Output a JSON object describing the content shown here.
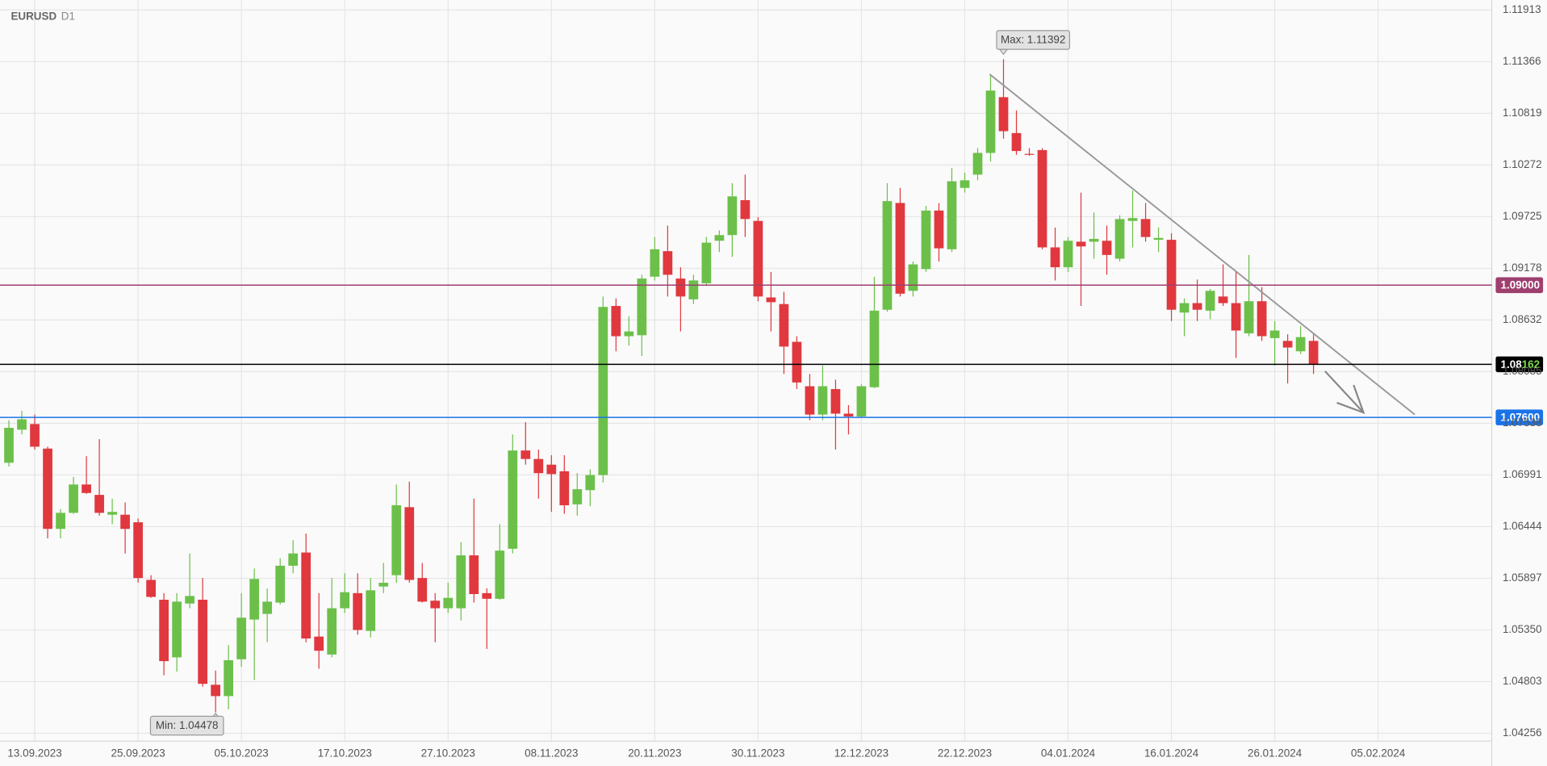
{
  "header": {
    "symbol": "EURUSD",
    "timeframe": "D1"
  },
  "chart_data": {
    "type": "candlestick",
    "up_color": "#6cc04a",
    "down_color": "#e0383e",
    "xlim": [
      -0.69,
      114.8
    ],
    "ylim": [
      1.04256,
      1.11913
    ],
    "yticks": [
      1.11913,
      1.11366,
      1.10819,
      1.10272,
      1.09725,
      1.09178,
      1.08632,
      1.08085,
      1.07538,
      1.06991,
      1.06444,
      1.05897,
      {
        "value": 1.0535,
        "label": "1.05350"
      },
      1.04803,
      1.04256
    ],
    "grid": true,
    "x_labels": [
      {
        "index": 2,
        "label": "13.09.2023"
      },
      {
        "index": 10,
        "label": "25.09.2023"
      },
      {
        "index": 18,
        "label": "05.10.2023"
      },
      {
        "index": 26,
        "label": "17.10.2023"
      },
      {
        "index": 34,
        "label": "27.10.2023"
      },
      {
        "index": 42,
        "label": "08.11.2023"
      },
      {
        "index": 50,
        "label": "20.11.2023"
      },
      {
        "index": 58,
        "label": "30.11.2023"
      },
      {
        "index": 66,
        "label": "12.12.2023"
      },
      {
        "index": 74,
        "label": "22.12.2023"
      },
      {
        "index": 82,
        "label": "04.01.2024"
      },
      {
        "index": 90,
        "label": "16.01.2024"
      },
      {
        "index": 98,
        "label": "26.01.2024"
      },
      {
        "index": 106,
        "label": "05.02.2024"
      }
    ],
    "levels": [
      {
        "value": 1.09,
        "label": "1.09000",
        "color": "#9e3f6e"
      },
      {
        "value": 1.08162,
        "label": "1.08162",
        "color": "#000000"
      },
      {
        "value": 1.076,
        "label": "1.07600",
        "color": "#1a73e8"
      }
    ],
    "max_marker": {
      "label": "Max: 1.11392",
      "value": 1.11392,
      "index": 77
    },
    "min_marker": {
      "label": "Min: 1.04478",
      "value": 1.04478,
      "index": 16
    },
    "candles": [
      {
        "o": 1.0712,
        "h": 1.0757,
        "l": 1.0708,
        "c": 1.0749
      },
      {
        "o": 1.0747,
        "h": 1.0767,
        "l": 1.0742,
        "c": 1.0758
      },
      {
        "o": 1.0753,
        "h": 1.0763,
        "l": 1.0726,
        "c": 1.0729
      },
      {
        "o": 1.0727,
        "h": 1.0729,
        "l": 1.0632,
        "c": 1.0642
      },
      {
        "o": 1.0642,
        "h": 1.0663,
        "l": 1.0632,
        "c": 1.0659
      },
      {
        "o": 1.0659,
        "h": 1.0697,
        "l": 1.0658,
        "c": 1.0689
      },
      {
        "o": 1.0689,
        "h": 1.0719,
        "l": 1.0679,
        "c": 1.068
      },
      {
        "o": 1.0678,
        "h": 1.0737,
        "l": 1.0656,
        "c": 1.0659
      },
      {
        "o": 1.0657,
        "h": 1.0674,
        "l": 1.0647,
        "c": 1.066
      },
      {
        "o": 1.0657,
        "h": 1.067,
        "l": 1.0616,
        "c": 1.0642
      },
      {
        "o": 1.0649,
        "h": 1.0653,
        "l": 1.0585,
        "c": 1.059
      },
      {
        "o": 1.0588,
        "h": 1.0593,
        "l": 1.0569,
        "c": 1.057
      },
      {
        "o": 1.0567,
        "h": 1.0574,
        "l": 1.0487,
        "c": 1.0502
      },
      {
        "o": 1.0506,
        "h": 1.0574,
        "l": 1.0491,
        "c": 1.0565
      },
      {
        "o": 1.0563,
        "h": 1.0616,
        "l": 1.0558,
        "c": 1.0571
      },
      {
        "o": 1.0567,
        "h": 1.059,
        "l": 1.0475,
        "c": 1.0478
      },
      {
        "o": 1.0477,
        "h": 1.0492,
        "l": 1.04478,
        "c": 1.0465
      },
      {
        "o": 1.0465,
        "h": 1.0519,
        "l": 1.0451,
        "c": 1.0503
      },
      {
        "o": 1.0504,
        "h": 1.0574,
        "l": 1.0496,
        "c": 1.0548
      },
      {
        "o": 1.0546,
        "h": 1.06,
        "l": 1.0482,
        "c": 1.0589
      },
      {
        "o": 1.0552,
        "h": 1.0579,
        "l": 1.0522,
        "c": 1.0565
      },
      {
        "o": 1.0564,
        "h": 1.0611,
        "l": 1.0562,
        "c": 1.0603
      },
      {
        "o": 1.0603,
        "h": 1.063,
        "l": 1.0595,
        "c": 1.0616
      },
      {
        "o": 1.0617,
        "h": 1.0637,
        "l": 1.0522,
        "c": 1.0526
      },
      {
        "o": 1.0528,
        "h": 1.0574,
        "l": 1.0494,
        "c": 1.0513
      },
      {
        "o": 1.0509,
        "h": 1.059,
        "l": 1.0506,
        "c": 1.0558
      },
      {
        "o": 1.0558,
        "h": 1.0595,
        "l": 1.0553,
        "c": 1.0575
      },
      {
        "o": 1.0574,
        "h": 1.0595,
        "l": 1.053,
        "c": 1.0535
      },
      {
        "o": 1.0534,
        "h": 1.059,
        "l": 1.0527,
        "c": 1.0577
      },
      {
        "o": 1.0581,
        "h": 1.0606,
        "l": 1.0574,
        "c": 1.0585
      },
      {
        "o": 1.0593,
        "h": 1.0689,
        "l": 1.0585,
        "c": 1.0667
      },
      {
        "o": 1.0665,
        "h": 1.0692,
        "l": 1.0585,
        "c": 1.0588
      },
      {
        "o": 1.059,
        "h": 1.0606,
        "l": 1.0564,
        "c": 1.0565
      },
      {
        "o": 1.0566,
        "h": 1.0574,
        "l": 1.0522,
        "c": 1.0558
      },
      {
        "o": 1.0558,
        "h": 1.0585,
        "l": 1.0553,
        "c": 1.0569
      },
      {
        "o": 1.0558,
        "h": 1.0628,
        "l": 1.0545,
        "c": 1.0614
      },
      {
        "o": 1.0614,
        "h": 1.0674,
        "l": 1.0564,
        "c": 1.0573
      },
      {
        "o": 1.0574,
        "h": 1.0579,
        "l": 1.0515,
        "c": 1.0568
      },
      {
        "o": 1.0568,
        "h": 1.0647,
        "l": 1.0567,
        "c": 1.0619
      },
      {
        "o": 1.0621,
        "h": 1.0742,
        "l": 1.0616,
        "c": 1.0725
      },
      {
        "o": 1.0725,
        "h": 1.0755,
        "l": 1.071,
        "c": 1.0716
      },
      {
        "o": 1.0716,
        "h": 1.0726,
        "l": 1.0674,
        "c": 1.0701
      },
      {
        "o": 1.071,
        "h": 1.072,
        "l": 1.066,
        "c": 1.07
      },
      {
        "o": 1.0703,
        "h": 1.072,
        "l": 1.0658,
        "c": 1.0667
      },
      {
        "o": 1.0668,
        "h": 1.0701,
        "l": 1.0656,
        "c": 1.0684
      },
      {
        "o": 1.0683,
        "h": 1.0705,
        "l": 1.0666,
        "c": 1.0699
      },
      {
        "o": 1.0699,
        "h": 1.0888,
        "l": 1.0691,
        "c": 1.0877
      },
      {
        "o": 1.0878,
        "h": 1.0886,
        "l": 1.083,
        "c": 1.0846
      },
      {
        "o": 1.0846,
        "h": 1.0867,
        "l": 1.0836,
        "c": 1.0851
      },
      {
        "o": 1.0847,
        "h": 1.0911,
        "l": 1.0825,
        "c": 1.0907
      },
      {
        "o": 1.0909,
        "h": 1.0951,
        "l": 1.0905,
        "c": 1.0938
      },
      {
        "o": 1.0936,
        "h": 1.0963,
        "l": 1.0888,
        "c": 1.0911
      },
      {
        "o": 1.0907,
        "h": 1.0919,
        "l": 1.0851,
        "c": 1.0888
      },
      {
        "o": 1.0885,
        "h": 1.0911,
        "l": 1.088,
        "c": 1.0905
      },
      {
        "o": 1.0902,
        "h": 1.0951,
        "l": 1.0899,
        "c": 1.0945
      },
      {
        "o": 1.0947,
        "h": 1.0958,
        "l": 1.0935,
        "c": 1.0953
      },
      {
        "o": 1.0953,
        "h": 1.1008,
        "l": 1.093,
        "c": 1.0994
      },
      {
        "o": 1.099,
        "h": 1.1017,
        "l": 1.0951,
        "c": 1.097
      },
      {
        "o": 1.0968,
        "h": 1.0972,
        "l": 1.0883,
        "c": 1.0888
      },
      {
        "o": 1.0887,
        "h": 1.0914,
        "l": 1.0851,
        "c": 1.0882
      },
      {
        "o": 1.088,
        "h": 1.0893,
        "l": 1.0806,
        "c": 1.0835
      },
      {
        "o": 1.084,
        "h": 1.0846,
        "l": 1.079,
        "c": 1.0797
      },
      {
        "o": 1.0793,
        "h": 1.0806,
        "l": 1.0757,
        "c": 1.0763
      },
      {
        "o": 1.0763,
        "h": 1.0815,
        "l": 1.0757,
        "c": 1.0793
      },
      {
        "o": 1.079,
        "h": 1.08,
        "l": 1.0726,
        "c": 1.0764
      },
      {
        "o": 1.0764,
        "h": 1.0773,
        "l": 1.0742,
        "c": 1.0761
      },
      {
        "o": 1.0761,
        "h": 1.0795,
        "l": 1.076,
        "c": 1.0793
      },
      {
        "o": 1.0792,
        "h": 1.0909,
        "l": 1.0791,
        "c": 1.0873
      },
      {
        "o": 1.0874,
        "h": 1.1008,
        "l": 1.0872,
        "c": 1.0989
      },
      {
        "o": 1.0987,
        "h": 1.1003,
        "l": 1.0888,
        "c": 1.0891
      },
      {
        "o": 1.0894,
        "h": 1.0925,
        "l": 1.0888,
        "c": 1.0922
      },
      {
        "o": 1.0917,
        "h": 1.0984,
        "l": 1.0914,
        "c": 1.0979
      },
      {
        "o": 1.0979,
        "h": 1.0987,
        "l": 1.0925,
        "c": 1.0939
      },
      {
        "o": 1.0938,
        "h": 1.1024,
        "l": 1.0935,
        "c": 1.101
      },
      {
        "o": 1.1003,
        "h": 1.1019,
        "l": 1.0998,
        "c": 1.1011
      },
      {
        "o": 1.1017,
        "h": 1.1045,
        "l": 1.1011,
        "c": 1.104
      },
      {
        "o": 1.104,
        "h": 1.1123,
        "l": 1.1031,
        "c": 1.1106
      },
      {
        "o": 1.1099,
        "h": 1.11392,
        "l": 1.1055,
        "c": 1.1063
      },
      {
        "o": 1.1061,
        "h": 1.1085,
        "l": 1.1038,
        "c": 1.1042
      },
      {
        "o": 1.1039,
        "h": 1.1045,
        "l": 1.1037,
        "c": 1.1038
      },
      {
        "o": 1.1043,
        "h": 1.1045,
        "l": 1.0938,
        "c": 1.094
      },
      {
        "o": 1.094,
        "h": 1.0961,
        "l": 1.0905,
        "c": 1.0919
      },
      {
        "o": 1.0919,
        "h": 1.0951,
        "l": 1.0914,
        "c": 1.0947
      },
      {
        "o": 1.0946,
        "h": 1.0998,
        "l": 1.0878,
        "c": 1.0941
      },
      {
        "o": 1.0946,
        "h": 1.0977,
        "l": 1.0928,
        "c": 1.0949
      },
      {
        "o": 1.0947,
        "h": 1.0963,
        "l": 1.0911,
        "c": 1.0932
      },
      {
        "o": 1.0928,
        "h": 1.0974,
        "l": 1.0925,
        "c": 1.097
      },
      {
        "o": 1.0968,
        "h": 1.1,
        "l": 1.094,
        "c": 1.0971
      },
      {
        "o": 1.097,
        "h": 1.0987,
        "l": 1.0946,
        "c": 1.0951
      },
      {
        "o": 1.0948,
        "h": 1.0961,
        "l": 1.0935,
        "c": 1.095
      },
      {
        "o": 1.0948,
        "h": 1.0955,
        "l": 1.0862,
        "c": 1.0874
      },
      {
        "o": 1.0871,
        "h": 1.0886,
        "l": 1.0846,
        "c": 1.0881
      },
      {
        "o": 1.0881,
        "h": 1.0906,
        "l": 1.0862,
        "c": 1.0874
      },
      {
        "o": 1.0873,
        "h": 1.0896,
        "l": 1.0864,
        "c": 1.0894
      },
      {
        "o": 1.0888,
        "h": 1.0922,
        "l": 1.0878,
        "c": 1.0881
      },
      {
        "o": 1.0881,
        "h": 1.0914,
        "l": 1.0823,
        "c": 1.0852
      },
      {
        "o": 1.0849,
        "h": 1.0932,
        "l": 1.0846,
        "c": 1.0883
      },
      {
        "o": 1.0883,
        "h": 1.0898,
        "l": 1.0841,
        "c": 1.0846
      },
      {
        "o": 1.0844,
        "h": 1.0862,
        "l": 1.0815,
        "c": 1.0852
      },
      {
        "o": 1.0841,
        "h": 1.0848,
        "l": 1.0796,
        "c": 1.0834
      },
      {
        "o": 1.083,
        "h": 1.0857,
        "l": 1.0827,
        "c": 1.0845
      },
      {
        "o": 1.0841,
        "h": 1.0848,
        "l": 1.0806,
        "c": 1.08162
      }
    ]
  }
}
